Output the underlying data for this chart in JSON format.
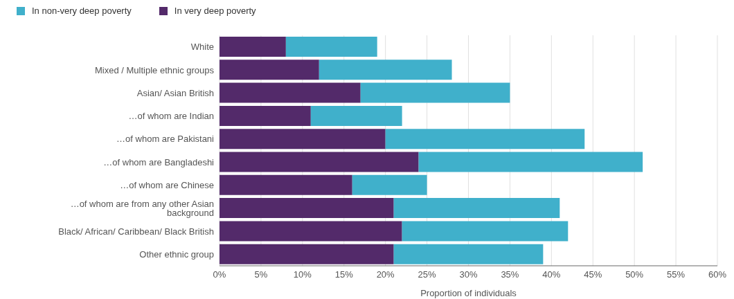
{
  "chart_data": {
    "type": "bar",
    "orientation": "horizontal",
    "stacked": true,
    "xlabel": "Proportion of individuals",
    "categories": [
      "White",
      "Mixed / Multiple ethnic groups",
      "Asian/ Asian British",
      "…of whom are Indian",
      "…of whom are Pakistani",
      "…of whom are Bangladeshi",
      "…of whom are Chinese",
      "…of whom are from any other Asian background",
      "Black/ African/ Caribbean/ Black British",
      "Other ethnic group"
    ],
    "series": [
      {
        "name": "In very deep poverty",
        "color": "#532a6a",
        "values": [
          8,
          12,
          17,
          11,
          20,
          24,
          16,
          21,
          22,
          21
        ]
      },
      {
        "name": "In non-very deep poverty",
        "color": "#40b0cb",
        "values": [
          11,
          16,
          18,
          11,
          24,
          27,
          9,
          20,
          20,
          18
        ]
      }
    ],
    "xlim": [
      0,
      60
    ],
    "xticks": [
      {
        "value": 0,
        "label": "0%"
      },
      {
        "value": 5,
        "label": "5%"
      },
      {
        "value": 10,
        "label": "10%"
      },
      {
        "value": 15,
        "label": "15%"
      },
      {
        "value": 20,
        "label": "20%"
      },
      {
        "value": 25,
        "label": "25%"
      },
      {
        "value": 30,
        "label": "30%"
      },
      {
        "value": 35,
        "label": "35%"
      },
      {
        "value": 40,
        "label": "40%"
      },
      {
        "value": 45,
        "label": "45%"
      },
      {
        "value": 50,
        "label": "50%"
      },
      {
        "value": 55,
        "label": "55%"
      },
      {
        "value": 60,
        "label": "60%"
      }
    ],
    "grid": "x",
    "legend": "top left"
  }
}
